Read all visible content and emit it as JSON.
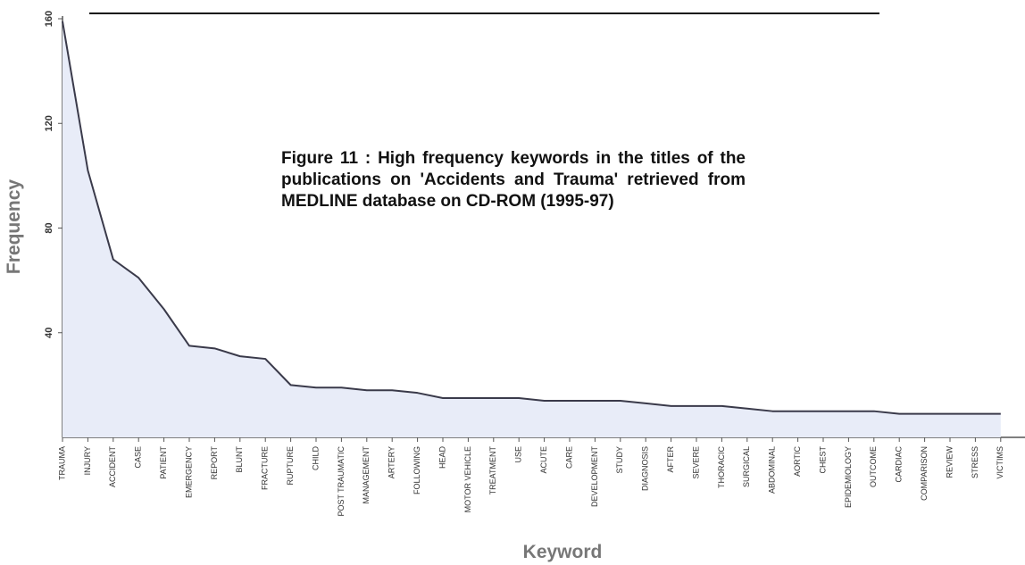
{
  "chart_data": {
    "type": "area",
    "title": "Figure 11 : High frequency keywords in the titles of the publications on 'Accidents and Trauma' retrieved from MEDLINE database on CD-ROM (1995-97)",
    "x_label": "Keyword",
    "y_label": "Frequency",
    "categories": [
      "TRAUMA",
      "INJURY",
      "ACCIDENT",
      "CASE",
      "PATIENT",
      "EMERGENCY",
      "REPORT",
      "BLUNT",
      "FRACTURE",
      "RUPTURE",
      "CHILD",
      "POST TRAUMATIC",
      "MANAGEMENT",
      "ARTERY",
      "FOLLOWING",
      "HEAD",
      "MOTOR VEHICLE",
      "TREATMENT",
      "USE",
      "ACUTE",
      "CARE",
      "DEVELOPMENT",
      "STUDY",
      "DIAGNOSIS",
      "AFTER",
      "SEVERE",
      "THORACIC",
      "SURGICAL",
      "ABDOMINAL",
      "AORTIC",
      "CHEST",
      "EPIDEMIOLOGY",
      "OUTCOME",
      "CARDIAC",
      "COMPARISON",
      "REVIEW",
      "STRESS",
      "VICTIMS"
    ],
    "values": [
      159,
      102,
      68,
      61,
      49,
      35,
      34,
      31,
      30,
      20,
      19,
      19,
      18,
      18,
      17,
      15,
      15,
      15,
      15,
      14,
      14,
      14,
      14,
      13,
      12,
      12,
      12,
      11,
      10,
      10,
      10,
      10,
      10,
      9,
      9,
      9,
      9,
      9
    ],
    "color": "#3a3a4a",
    "fill": "#e8ecf8",
    "ylim": [
      0,
      160
    ],
    "yticks": [
      40,
      80,
      120,
      160
    ]
  }
}
